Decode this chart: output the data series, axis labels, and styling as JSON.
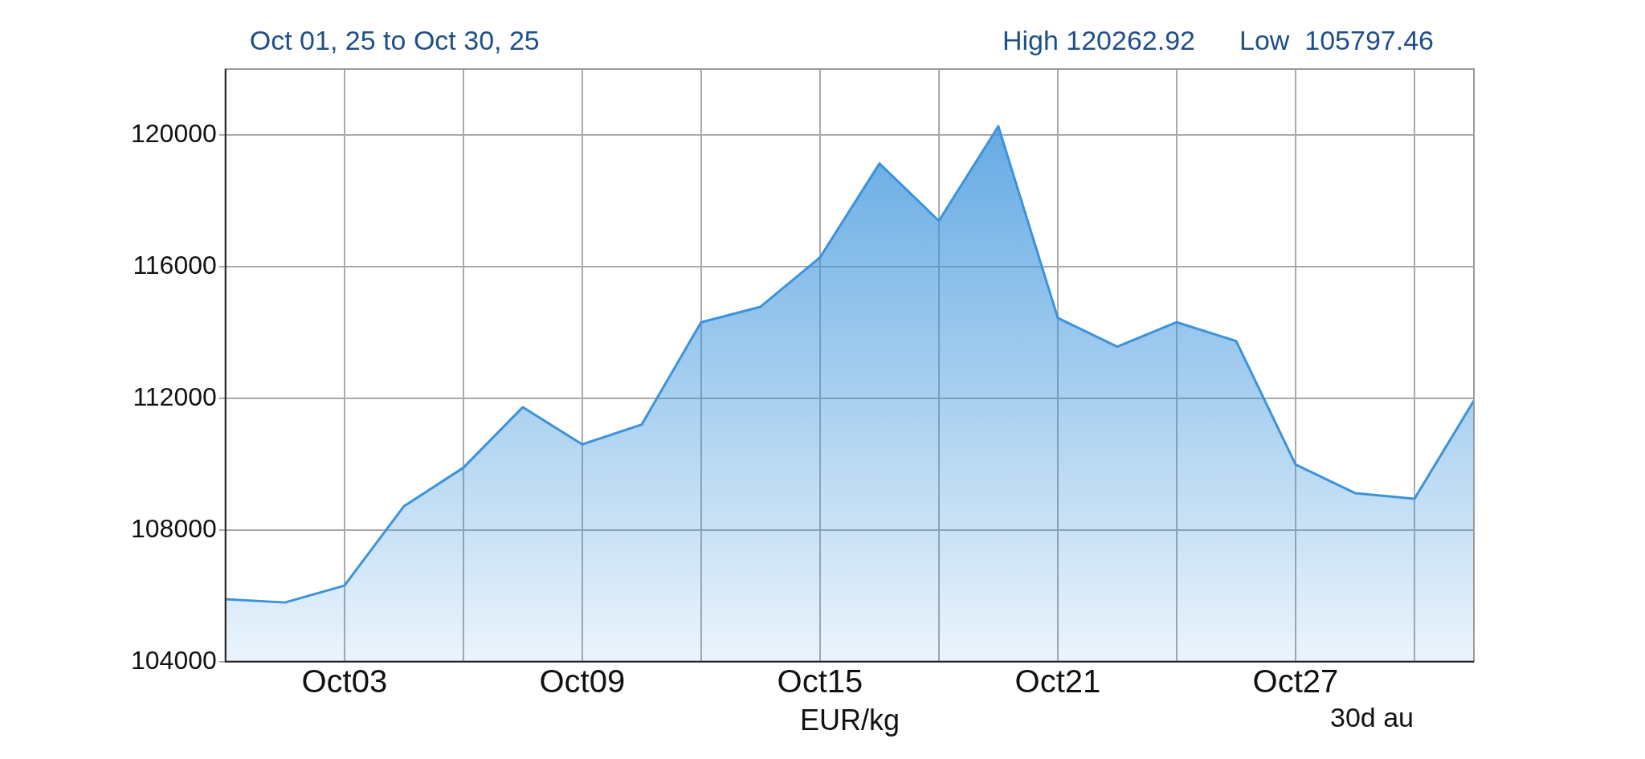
{
  "chart_data": {
    "type": "area",
    "title": "Oct 01, 25 to Oct 30, 25",
    "xlabel": "EUR/kg",
    "annotations": [
      "High 120262.92",
      "Low  105797.46",
      "30d au"
    ],
    "categories": [
      null,
      null,
      "Oct03",
      null,
      null,
      null,
      "Oct09",
      null,
      null,
      null,
      "Oct15",
      null,
      null,
      null,
      "Oct21",
      null,
      null,
      null,
      "Oct27",
      null,
      null,
      null
    ],
    "series": [
      {
        "color": "#3a93dc",
        "values": [
          105900,
          105797.46,
          106310,
          108720,
          109890,
          111730,
          110600,
          111200,
          114310,
          114780,
          116280,
          119130,
          117390,
          120262.92,
          114440,
          113570,
          114310,
          113740,
          109990,
          109120,
          108950,
          111930
        ]
      }
    ],
    "ylim": [
      104000,
      122000
    ],
    "yticks": [
      104000,
      108000,
      112000,
      116000,
      120000
    ],
    "grid": true,
    "legend": false,
    "marker": "none"
  }
}
